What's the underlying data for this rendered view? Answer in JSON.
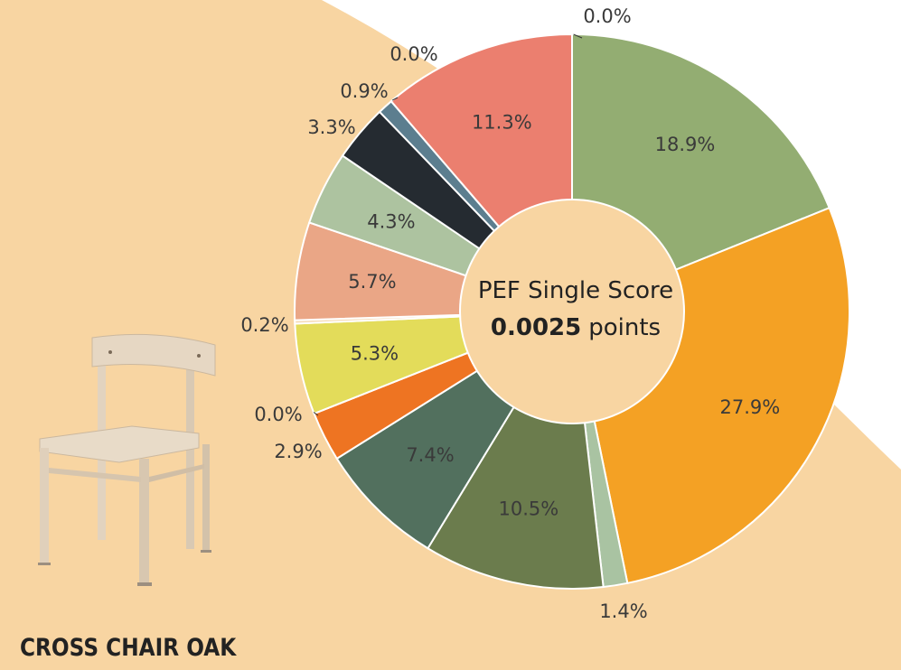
{
  "product_title": "CROSS CHAIR OAK",
  "chart_data": {
    "type": "pie",
    "style": "donut",
    "center_title": "PEF Single Score",
    "center_value": "0.0025",
    "center_unit": "points",
    "values": [
      0.0,
      18.9,
      27.9,
      1.4,
      10.5,
      7.4,
      2.9,
      0.0,
      5.3,
      0.2,
      5.7,
      4.3,
      3.3,
      0.9,
      0.0,
      11.3
    ],
    "labels": [
      "0.0%",
      "18.9%",
      "27.9%",
      "1.4%",
      "10.5%",
      "7.4%",
      "2.9%",
      "0.0%",
      "5.3%",
      "0.2%",
      "5.7%",
      "4.3%",
      "3.3%",
      "0.9%",
      "0.0%",
      "11.3%"
    ],
    "colors": [
      "#7fa7b8",
      "#93ad72",
      "#f4a124",
      "#a9c3a2",
      "#6b7c4d",
      "#52705e",
      "#ee7422",
      "#3f5f48",
      "#e3dc5a",
      "#f6dcb8",
      "#eaa686",
      "#adc3a0",
      "#252b31",
      "#5c7e8f",
      "#c7b38a",
      "#eb7f6f"
    ],
    "background_color": "#f8d5a2"
  }
}
